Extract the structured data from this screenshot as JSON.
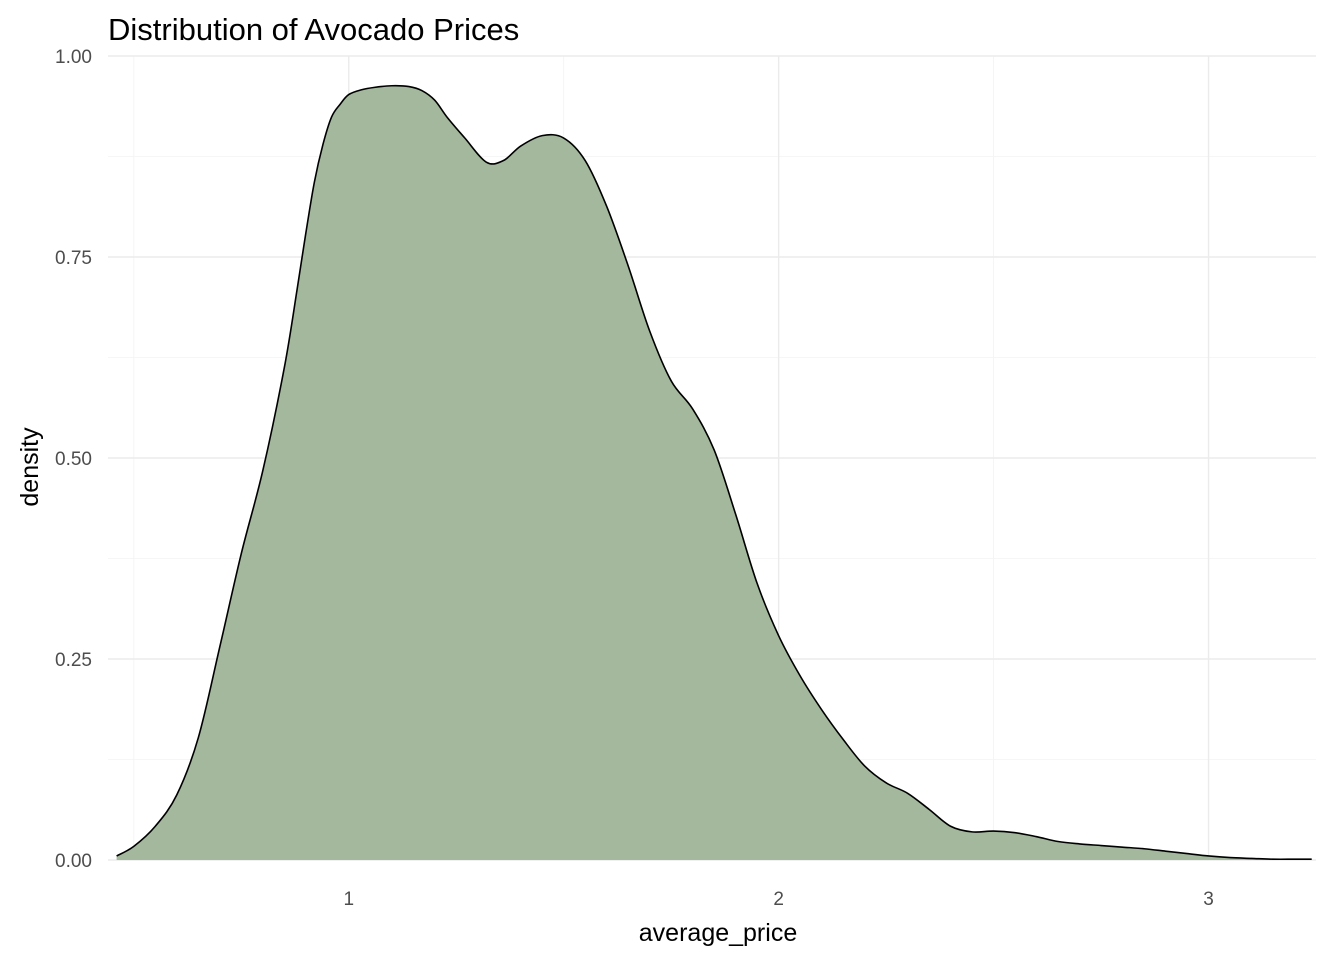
{
  "chart_data": {
    "type": "area",
    "title": "Distribution of Avocado Prices",
    "xlabel": "average_price",
    "ylabel": "density",
    "xlim": [
      0.44,
      3.25
    ],
    "ylim": [
      0,
      1.0
    ],
    "x_ticks": [
      1,
      2,
      3
    ],
    "x_tick_labels": [
      "1",
      "2",
      "3"
    ],
    "x_minor_ticks": [
      0.5,
      1.5,
      2.5
    ],
    "y_ticks": [
      0,
      0.25,
      0.5,
      0.75,
      1.0
    ],
    "y_tick_labels": [
      "0.00",
      "0.25",
      "0.50",
      "0.75",
      "1.00"
    ],
    "y_minor_ticks": [
      0.125,
      0.375,
      0.625,
      0.875
    ],
    "grid": true,
    "fill_color": "#a3b89c",
    "line_color": "#000000",
    "series": [
      {
        "x": [
          0.46,
          0.5,
          0.55,
          0.6,
          0.65,
          0.7,
          0.75,
          0.8,
          0.85,
          0.88,
          0.9,
          0.92,
          0.94,
          0.96,
          0.98,
          1.0,
          1.03,
          1.06,
          1.1,
          1.14,
          1.17,
          1.2,
          1.23,
          1.27,
          1.32,
          1.36,
          1.4,
          1.45,
          1.5,
          1.55,
          1.6,
          1.65,
          1.7,
          1.75,
          1.8,
          1.85,
          1.9,
          1.95,
          2.0,
          2.05,
          2.1,
          2.15,
          2.2,
          2.25,
          2.3,
          2.35,
          2.4,
          2.45,
          2.5,
          2.55,
          2.6,
          2.65,
          2.7,
          2.75,
          2.8,
          2.85,
          2.9,
          2.95,
          3.0,
          3.05,
          3.1,
          3.15,
          3.2,
          3.24
        ],
        "y": [
          0.005,
          0.017,
          0.042,
          0.081,
          0.152,
          0.265,
          0.381,
          0.484,
          0.612,
          0.71,
          0.779,
          0.843,
          0.89,
          0.924,
          0.94,
          0.952,
          0.958,
          0.961,
          0.963,
          0.962,
          0.957,
          0.945,
          0.923,
          0.898,
          0.868,
          0.87,
          0.888,
          0.901,
          0.898,
          0.87,
          0.813,
          0.739,
          0.658,
          0.596,
          0.561,
          0.51,
          0.43,
          0.344,
          0.279,
          0.229,
          0.187,
          0.15,
          0.117,
          0.096,
          0.083,
          0.063,
          0.042,
          0.035,
          0.036,
          0.034,
          0.029,
          0.023,
          0.02,
          0.018,
          0.016,
          0.014,
          0.011,
          0.008,
          0.005,
          0.003,
          0.002,
          0.001,
          0.001,
          0.001
        ]
      }
    ]
  }
}
